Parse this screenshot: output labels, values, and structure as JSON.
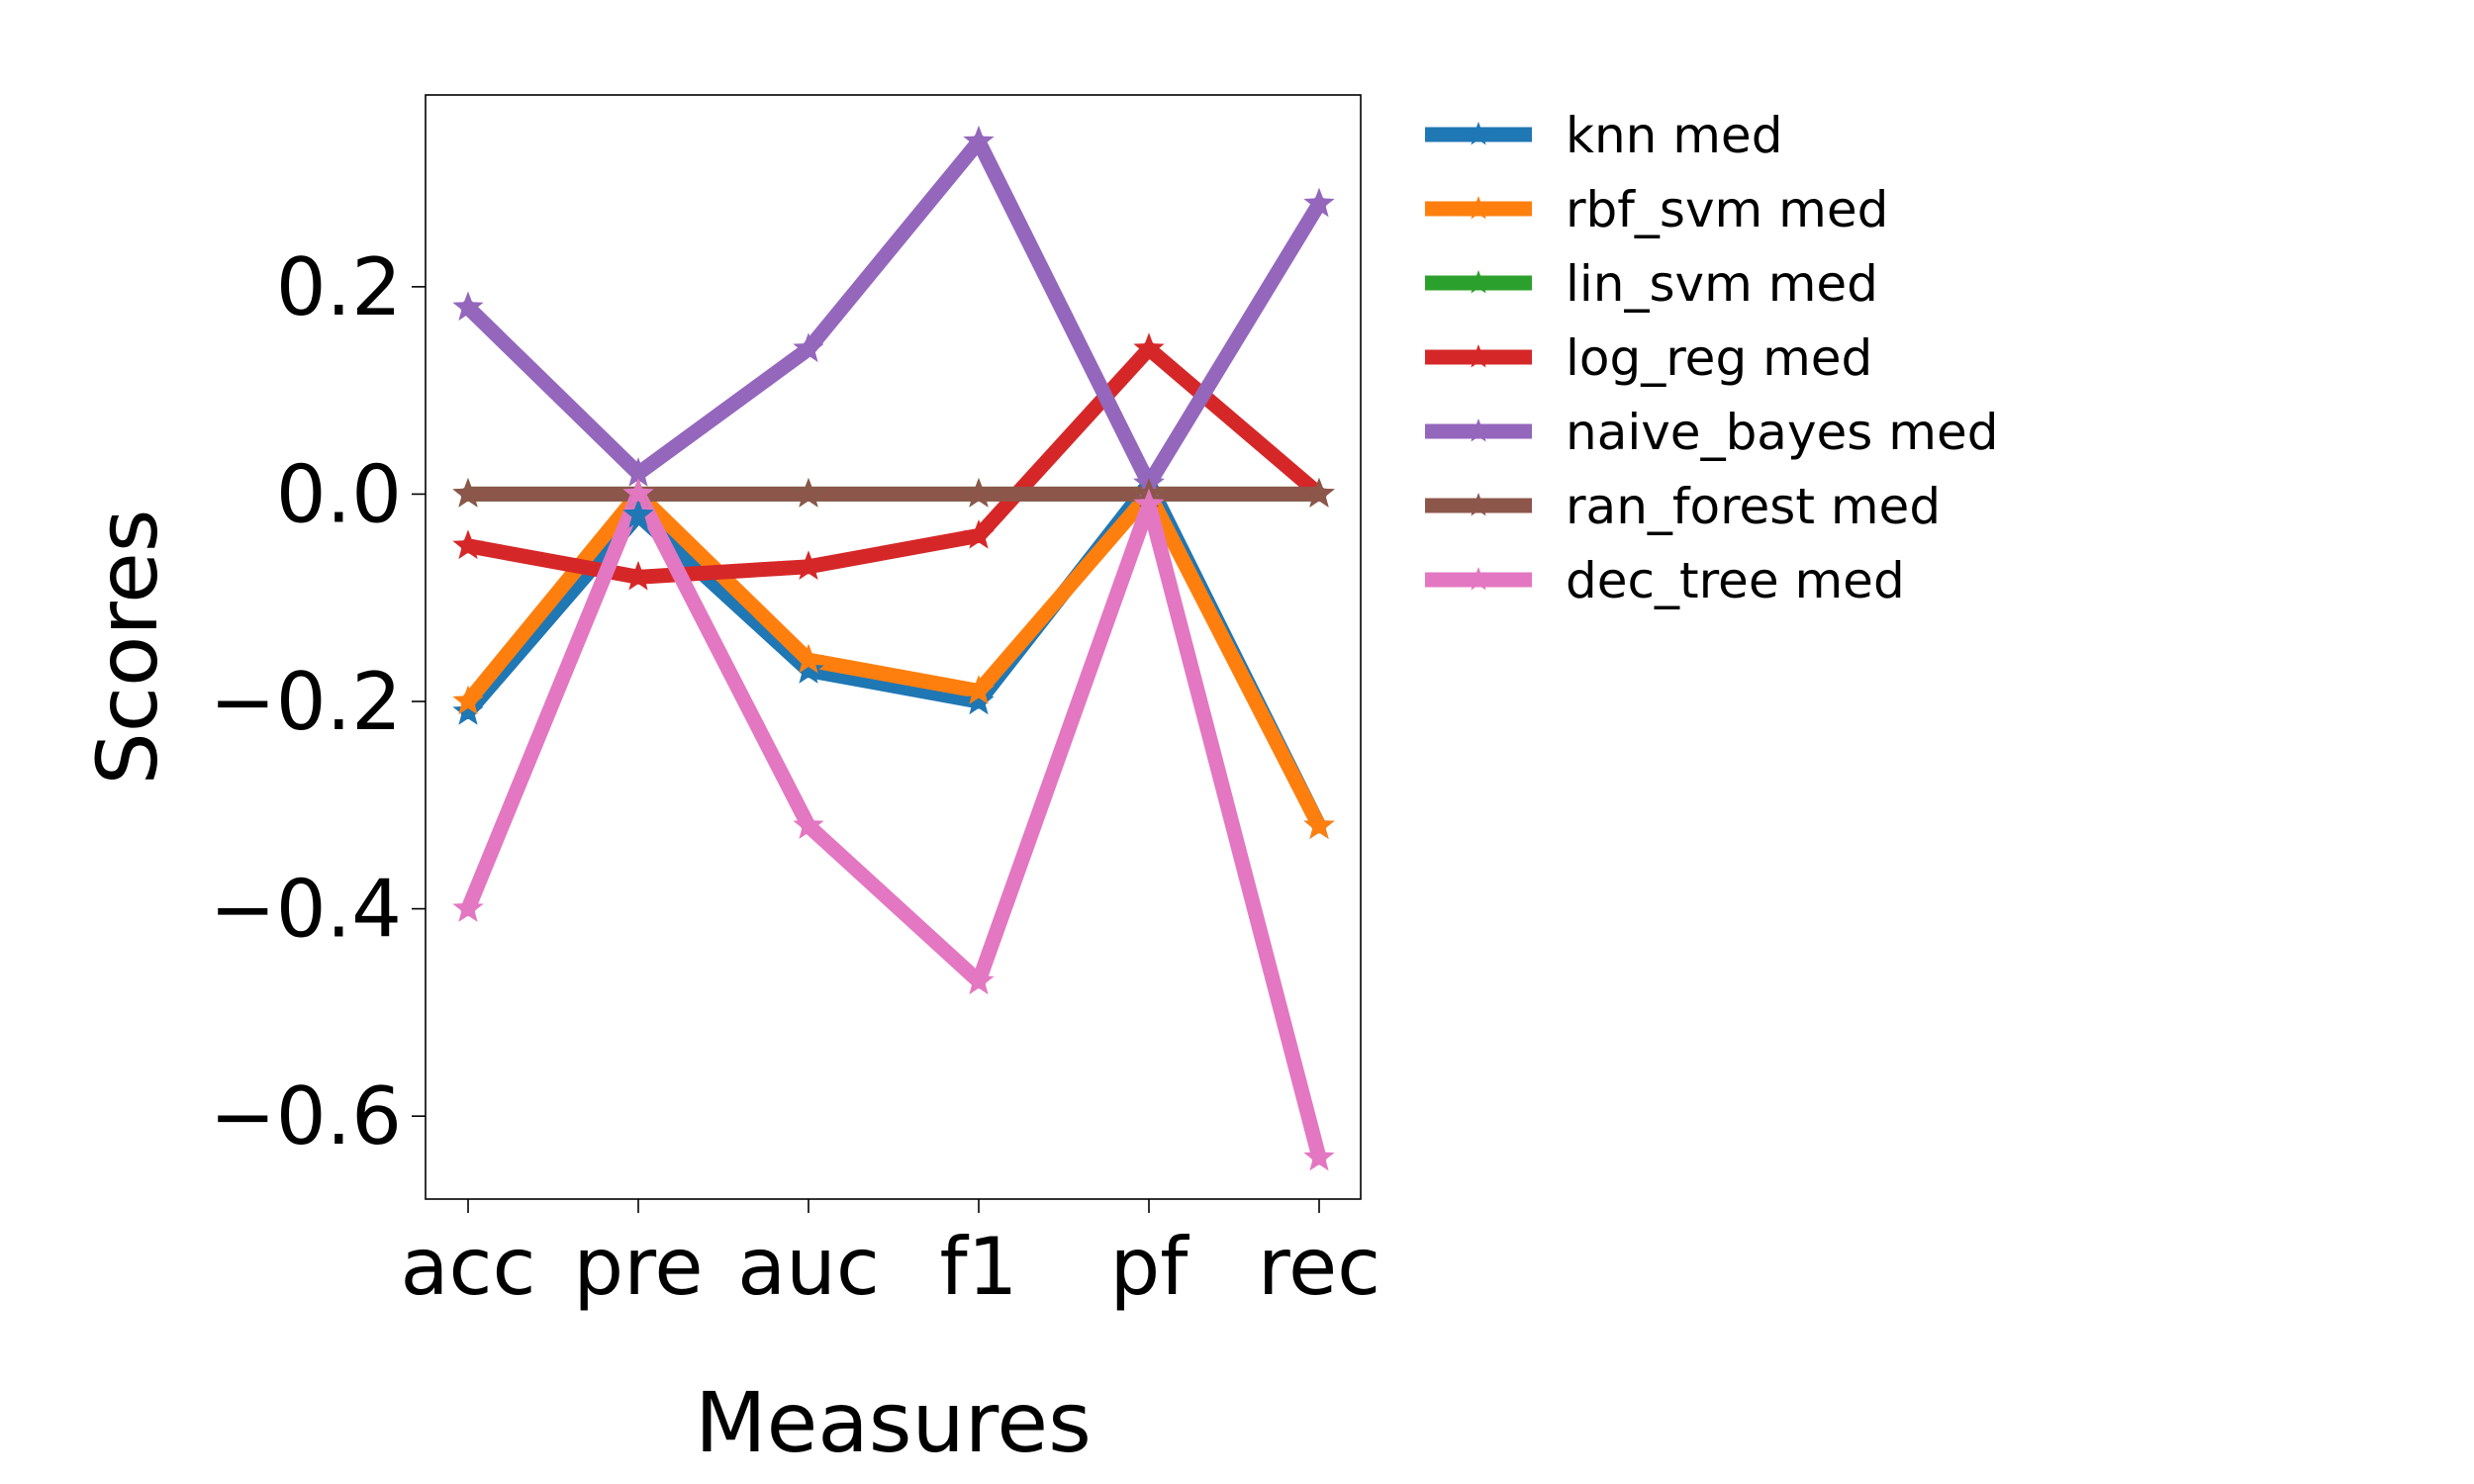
{
  "chart_data": {
    "type": "line",
    "title": "",
    "xlabel": "Measures",
    "ylabel": "Scores",
    "categories": [
      "acc",
      "pre",
      "auc",
      "f1",
      "pf",
      "rec"
    ],
    "yticks": [
      0.2,
      0.0,
      -0.2,
      -0.4,
      -0.6
    ],
    "ytick_labels": [
      "0.2",
      "0.0",
      "−0.2",
      "−0.4",
      "−0.6"
    ],
    "ylim": [
      -0.68,
      0.385
    ],
    "grid": false,
    "legend_position": "outside-right",
    "marker": "star",
    "series": [
      {
        "name": "knn med",
        "color": "#1f77b4",
        "values": [
          -0.21,
          -0.02,
          -0.17,
          -0.2,
          0.01,
          -0.32
        ]
      },
      {
        "name": "rbf_svm med",
        "color": "#ff7f0e",
        "values": [
          -0.2,
          0.0,
          -0.16,
          -0.19,
          0.0,
          -0.32
        ]
      },
      {
        "name": "lin_svm med",
        "color": "#2ca02c",
        "values": [
          0.0,
          0.0,
          0.0,
          0.0,
          0.0,
          0.0
        ]
      },
      {
        "name": "log_reg med",
        "color": "#d62728",
        "values": [
          -0.05,
          -0.08,
          -0.07,
          -0.04,
          0.14,
          0.0
        ]
      },
      {
        "name": "naive_bayes med",
        "color": "#9467bd",
        "values": [
          0.18,
          0.02,
          0.14,
          0.34,
          0.01,
          0.28
        ]
      },
      {
        "name": "ran_forest med",
        "color": "#8c564b",
        "values": [
          0.0,
          0.0,
          0.0,
          0.0,
          0.0,
          0.0
        ]
      },
      {
        "name": "dec_tree med",
        "color": "#e377c2",
        "values": [
          -0.4,
          0.0,
          -0.32,
          -0.47,
          -0.01,
          -0.64
        ]
      }
    ]
  }
}
